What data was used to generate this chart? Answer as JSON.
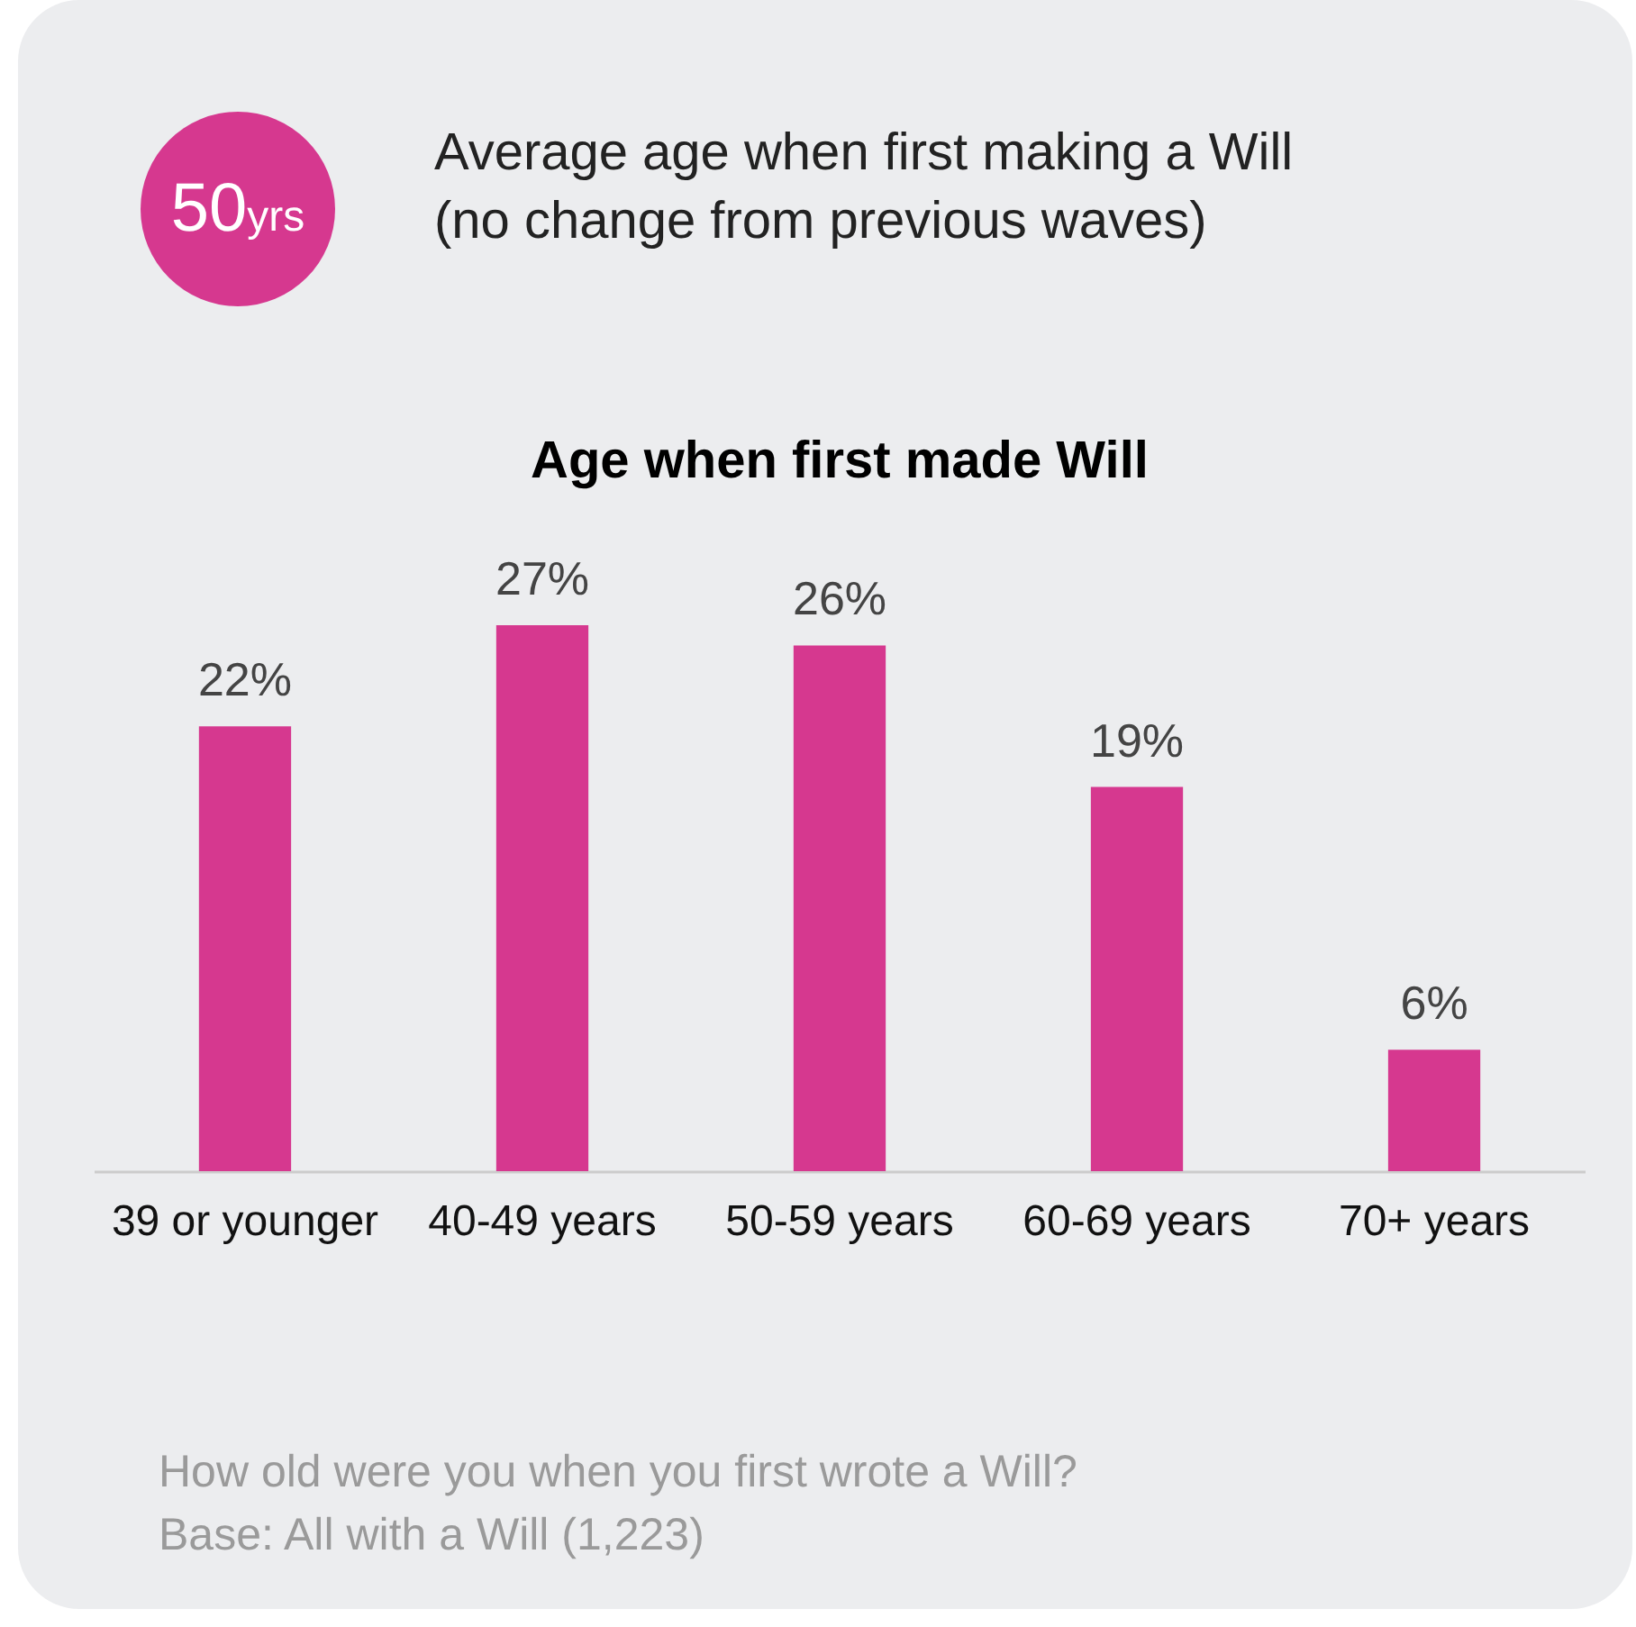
{
  "chart_data": {
    "type": "bar",
    "title": "Age when first made Will",
    "categories": [
      "39 or younger",
      "40-49 years",
      "50-59 years",
      "60-69 years",
      "70+ years"
    ],
    "values": [
      22,
      27,
      26,
      19,
      6
    ],
    "color": "#d6388f",
    "value_labels": [
      "22%",
      "27%",
      "26%",
      "19%",
      "6%"
    ],
    "annotations": [
      "50yrs",
      "Average age when first making a Will (no change from previous waves)",
      "How old were you when you first wrote a Will?",
      "Base: All with a Will (1,223)"
    ]
  }
}
